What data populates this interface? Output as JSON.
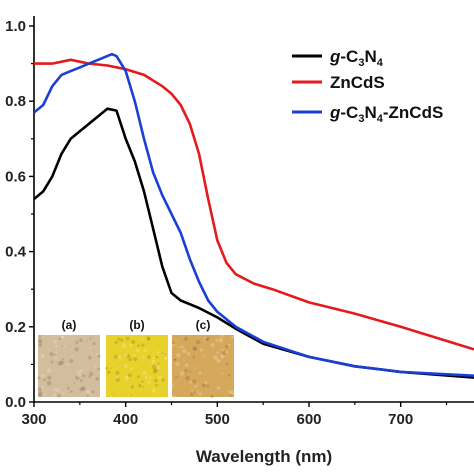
{
  "chart_data": {
    "type": "line",
    "xlabel": "Wavelength (nm)",
    "ylabel": "",
    "xlim": [
      300,
      780
    ],
    "ylim": [
      0.0,
      1.0
    ],
    "x_ticks": [
      "300",
      "400",
      "500",
      "600",
      "700"
    ],
    "y_ticks": [
      "0.0",
      "0.2",
      "0.4",
      "0.6",
      "0.8",
      "1.0"
    ],
    "legend_position": "top-right",
    "series": [
      {
        "name": "g-C3N4",
        "legend": {
          "prefix": "g",
          "parts": [
            "-C",
            "3",
            "N",
            "4"
          ]
        },
        "color": "#000000",
        "x": [
          300,
          310,
          320,
          330,
          340,
          350,
          360,
          370,
          380,
          390,
          400,
          410,
          420,
          430,
          440,
          450,
          460,
          470,
          480,
          500,
          520,
          550,
          600,
          650,
          700,
          780
        ],
        "y": [
          0.54,
          0.56,
          0.6,
          0.66,
          0.7,
          0.72,
          0.74,
          0.76,
          0.78,
          0.775,
          0.7,
          0.64,
          0.56,
          0.46,
          0.36,
          0.29,
          0.27,
          0.26,
          0.25,
          0.225,
          0.195,
          0.155,
          0.12,
          0.095,
          0.08,
          0.065
        ]
      },
      {
        "name": "ZnCdS",
        "legend": {
          "prefix": "",
          "parts": [
            "ZnCdS"
          ]
        },
        "color": "#e41a1c",
        "x": [
          300,
          320,
          340,
          360,
          380,
          400,
          420,
          440,
          450,
          460,
          470,
          480,
          490,
          500,
          510,
          520,
          540,
          560,
          600,
          650,
          700,
          780
        ],
        "y": [
          0.9,
          0.9,
          0.91,
          0.9,
          0.895,
          0.885,
          0.87,
          0.84,
          0.82,
          0.79,
          0.74,
          0.66,
          0.54,
          0.43,
          0.37,
          0.34,
          0.315,
          0.3,
          0.265,
          0.235,
          0.2,
          0.14
        ]
      },
      {
        "name": "g-C3N4-ZnCdS",
        "legend": {
          "prefix": "g",
          "parts": [
            "-C",
            "3",
            "N",
            "4",
            "-ZnCdS"
          ]
        },
        "color": "#1a3fd6",
        "x": [
          300,
          310,
          320,
          330,
          340,
          350,
          360,
          370,
          380,
          385,
          390,
          400,
          410,
          420,
          430,
          440,
          450,
          460,
          470,
          480,
          490,
          500,
          520,
          550,
          600,
          650,
          700,
          780
        ],
        "y": [
          0.77,
          0.79,
          0.84,
          0.87,
          0.88,
          0.89,
          0.9,
          0.91,
          0.92,
          0.925,
          0.92,
          0.88,
          0.8,
          0.7,
          0.61,
          0.55,
          0.5,
          0.45,
          0.38,
          0.32,
          0.27,
          0.24,
          0.2,
          0.16,
          0.12,
          0.095,
          0.08,
          0.07
        ]
      }
    ],
    "inset_images": [
      {
        "label": "(a)",
        "color": "#d2bd9c"
      },
      {
        "label": "(b)",
        "color": "#e8d12a"
      },
      {
        "label": "(c)",
        "color": "#d6a85c"
      }
    ]
  }
}
